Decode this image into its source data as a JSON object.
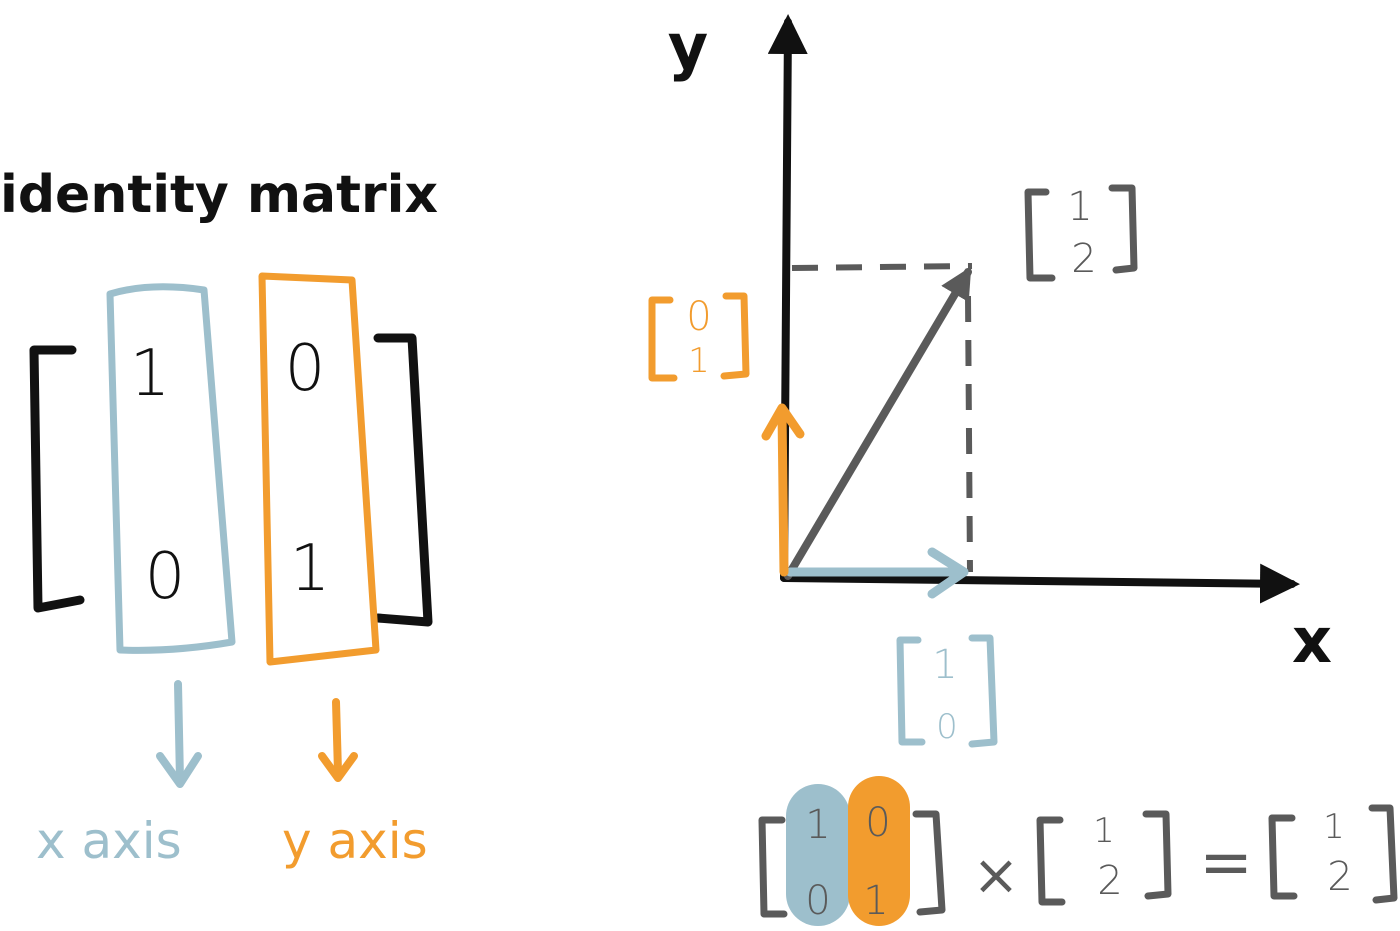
{
  "title": "identity matrix",
  "identity_matrix": {
    "col1": [
      "1",
      "0"
    ],
    "col2": [
      "0",
      "1"
    ]
  },
  "axis_captions": {
    "x": "x axis",
    "y": "y axis"
  },
  "plot_axes": {
    "x": "x",
    "y": "y"
  },
  "vectors": {
    "e1": [
      "1",
      "0"
    ],
    "e2": [
      "0",
      "1"
    ],
    "result": [
      "1",
      "2"
    ]
  },
  "equation": {
    "matrix": {
      "row1": [
        "1",
        "0"
      ],
      "row2": [
        "0",
        "1"
      ]
    },
    "times": "×",
    "vector": [
      "1",
      "2"
    ],
    "equals": "=",
    "result": [
      "1",
      "2"
    ]
  },
  "colors": {
    "ink": "#111111",
    "x_axis_blue": "#9dbfcc",
    "y_axis_orange": "#f29c2e",
    "gray": "#5a5a5a"
  }
}
